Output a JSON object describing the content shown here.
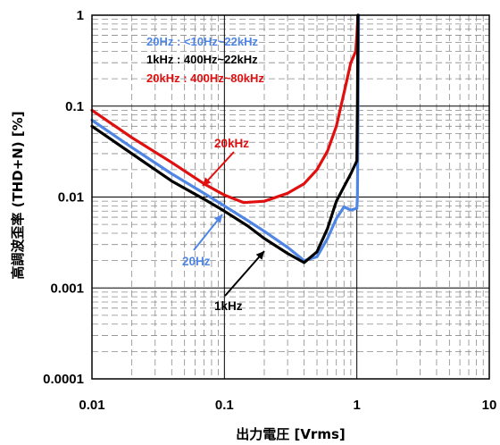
{
  "chart_data": {
    "type": "line",
    "xscale": "log",
    "yscale": "log",
    "xlim": [
      0.01,
      10
    ],
    "ylim": [
      0.0001,
      1
    ],
    "grid": true,
    "xlabel": "出力電圧 [Vrms]",
    "ylabel": "高調波歪率 (THD+N) [%]",
    "x_ticks": [
      "0.01",
      "0.1",
      "1",
      "10"
    ],
    "y_ticks": [
      "0.0001",
      "0.001",
      "0.01",
      "0.1",
      "1"
    ],
    "legend": [
      {
        "text": "20Hz : <10Hz~22kHz",
        "color": "#4f86e6"
      },
      {
        "text": "1kHz : 400Hz~22kHz",
        "color": "#000000"
      },
      {
        "text": "20kHz : 400Hz~80kHz",
        "color": "#e01010"
      }
    ],
    "annotations": [
      {
        "text": "20kHz",
        "color": "#e01010",
        "series": "20kHz"
      },
      {
        "text": "20Hz",
        "color": "#4f86e6",
        "series": "20Hz"
      },
      {
        "text": "1kHz",
        "color": "#000000",
        "series": "1kHz"
      }
    ],
    "series": [
      {
        "name": "20kHz",
        "color": "#e01010",
        "points": [
          [
            0.01,
            0.09
          ],
          [
            0.02,
            0.045
          ],
          [
            0.04,
            0.024
          ],
          [
            0.07,
            0.014
          ],
          [
            0.1,
            0.0105
          ],
          [
            0.14,
            0.0087
          ],
          [
            0.2,
            0.009
          ],
          [
            0.3,
            0.011
          ],
          [
            0.4,
            0.014
          ],
          [
            0.5,
            0.02
          ],
          [
            0.6,
            0.032
          ],
          [
            0.7,
            0.06
          ],
          [
            0.8,
            0.14
          ],
          [
            0.9,
            0.3
          ],
          [
            0.98,
            0.4
          ],
          [
            1.0,
            0.6
          ],
          [
            1.02,
            1.0
          ]
        ]
      },
      {
        "name": "20Hz",
        "color": "#4f86e6",
        "points": [
          [
            0.01,
            0.07
          ],
          [
            0.02,
            0.035
          ],
          [
            0.04,
            0.018
          ],
          [
            0.07,
            0.011
          ],
          [
            0.1,
            0.008
          ],
          [
            0.15,
            0.0055
          ],
          [
            0.2,
            0.0042
          ],
          [
            0.3,
            0.0028
          ],
          [
            0.4,
            0.002
          ],
          [
            0.5,
            0.0022
          ],
          [
            0.6,
            0.0035
          ],
          [
            0.7,
            0.0058
          ],
          [
            0.8,
            0.0078
          ],
          [
            0.9,
            0.0072
          ],
          [
            1.0,
            0.0075
          ],
          [
            1.01,
            0.01
          ],
          [
            1.02,
            0.05
          ],
          [
            1.03,
            1.0
          ]
        ]
      },
      {
        "name": "1kHz",
        "color": "#000000",
        "points": [
          [
            0.01,
            0.06
          ],
          [
            0.02,
            0.03
          ],
          [
            0.04,
            0.015
          ],
          [
            0.07,
            0.0095
          ],
          [
            0.1,
            0.007
          ],
          [
            0.15,
            0.0048
          ],
          [
            0.2,
            0.0035
          ],
          [
            0.3,
            0.0024
          ],
          [
            0.4,
            0.0019
          ],
          [
            0.5,
            0.0025
          ],
          [
            0.6,
            0.0045
          ],
          [
            0.7,
            0.009
          ],
          [
            0.8,
            0.013
          ],
          [
            0.9,
            0.018
          ],
          [
            1.0,
            0.025
          ],
          [
            1.01,
            0.1
          ],
          [
            1.02,
            1.0
          ]
        ]
      }
    ]
  }
}
